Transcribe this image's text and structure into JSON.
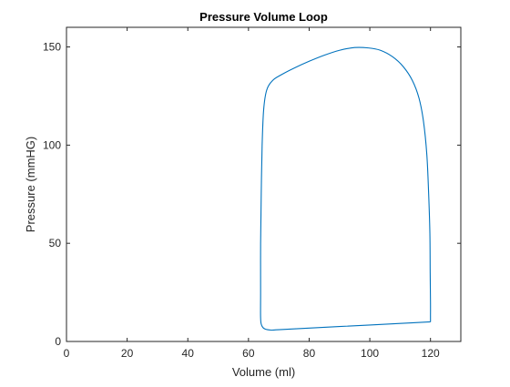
{
  "colors": {
    "background": "#ffffff",
    "axes": "#262626",
    "series": "#0072bd"
  },
  "chart_data": {
    "type": "line",
    "title": "Pressure Volume Loop",
    "xlabel": "Volume (ml)",
    "ylabel": "Pressure (mmHG)",
    "xlim": [
      0,
      130
    ],
    "ylim": [
      0,
      160
    ],
    "xticks": [
      0,
      20,
      40,
      60,
      80,
      100,
      120
    ],
    "yticks": [
      0,
      50,
      100,
      150
    ],
    "xtick_labels": [
      "0",
      "20",
      "40",
      "60",
      "80",
      "100",
      "120"
    ],
    "ytick_labels": [
      "0",
      "50",
      "100",
      "150"
    ],
    "grid": false,
    "box": true,
    "series": [
      {
        "color": "#0072bd",
        "points": [
          [
            120,
            10
          ],
          [
            120,
            13
          ],
          [
            120,
            20
          ],
          [
            119.9,
            35
          ],
          [
            119.8,
            55
          ],
          [
            119.4,
            75
          ],
          [
            118.8,
            95
          ],
          [
            117.7,
            112
          ],
          [
            116.2,
            124
          ],
          [
            114,
            133
          ],
          [
            111,
            140
          ],
          [
            107.5,
            145
          ],
          [
            103.5,
            148.3
          ],
          [
            99.5,
            149.5
          ],
          [
            95,
            149.7
          ],
          [
            90,
            148.3
          ],
          [
            85,
            145.8
          ],
          [
            80,
            142.7
          ],
          [
            75,
            139.2
          ],
          [
            71,
            136
          ],
          [
            68,
            133
          ],
          [
            66,
            128
          ],
          [
            65,
            118
          ],
          [
            64.5,
            100
          ],
          [
            64.2,
            75
          ],
          [
            64,
            50
          ],
          [
            64,
            25
          ],
          [
            64,
            12
          ],
          [
            64.4,
            8
          ],
          [
            65.5,
            6.3
          ],
          [
            67.5,
            5.8
          ],
          [
            70,
            6
          ],
          [
            80,
            6.8
          ],
          [
            90,
            7.6
          ],
          [
            100,
            8.4
          ],
          [
            110,
            9.2
          ],
          [
            120,
            10
          ]
        ]
      }
    ]
  }
}
